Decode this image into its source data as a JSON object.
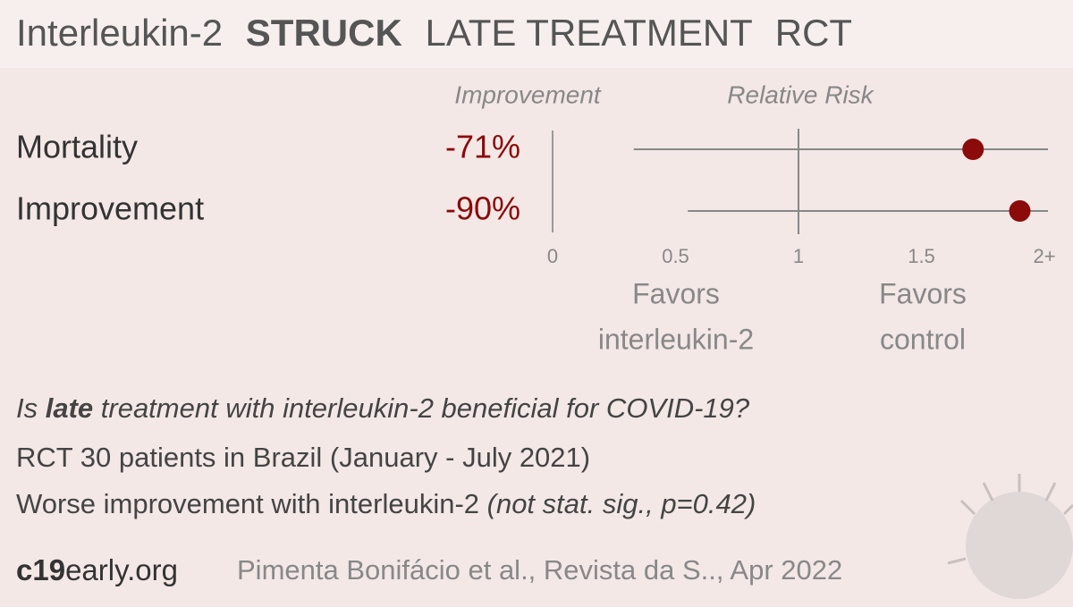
{
  "chart_data": {
    "type": "forest",
    "title": [
      "Interleukin-2",
      "STRUCK",
      "LATE TREATMENT",
      "RCT"
    ],
    "column_headers": [
      "Improvement",
      "Relative Risk"
    ],
    "categories": [
      "Mortality",
      "Improvement"
    ],
    "improvement": {
      "values": [
        -71,
        -90
      ],
      "value_labels": [
        "-71%",
        "-90%"
      ]
    },
    "values": [
      1.71,
      1.9
    ],
    "lower": [
      0.33,
      0.55
    ],
    "upper": [
      2,
      2
    ],
    "color": "#8b0a0a",
    "xlim": [
      0,
      2
    ],
    "xticks": [
      0,
      0.5,
      1,
      1.5,
      {
        "value": 2,
        "label": "2+"
      }
    ],
    "favors_left": [
      "Favors",
      "interleukin-2"
    ],
    "favors_right": [
      "Favors",
      "control"
    ]
  },
  "summary": {
    "question": [
      "Is ",
      "late",
      " treatment with interleukin-2 beneficial for COVID-19?"
    ],
    "design": "RCT 30 patients in Brazil (January - July 2021)",
    "result": [
      "Worse improvement with interleukin-2 ",
      "(not stat. sig., p=0.42)"
    ]
  },
  "footer": {
    "site": [
      "c19",
      "early.org"
    ],
    "citation": "Pimenta Bonifácio et al., Revista da S.., Apr 2022"
  }
}
